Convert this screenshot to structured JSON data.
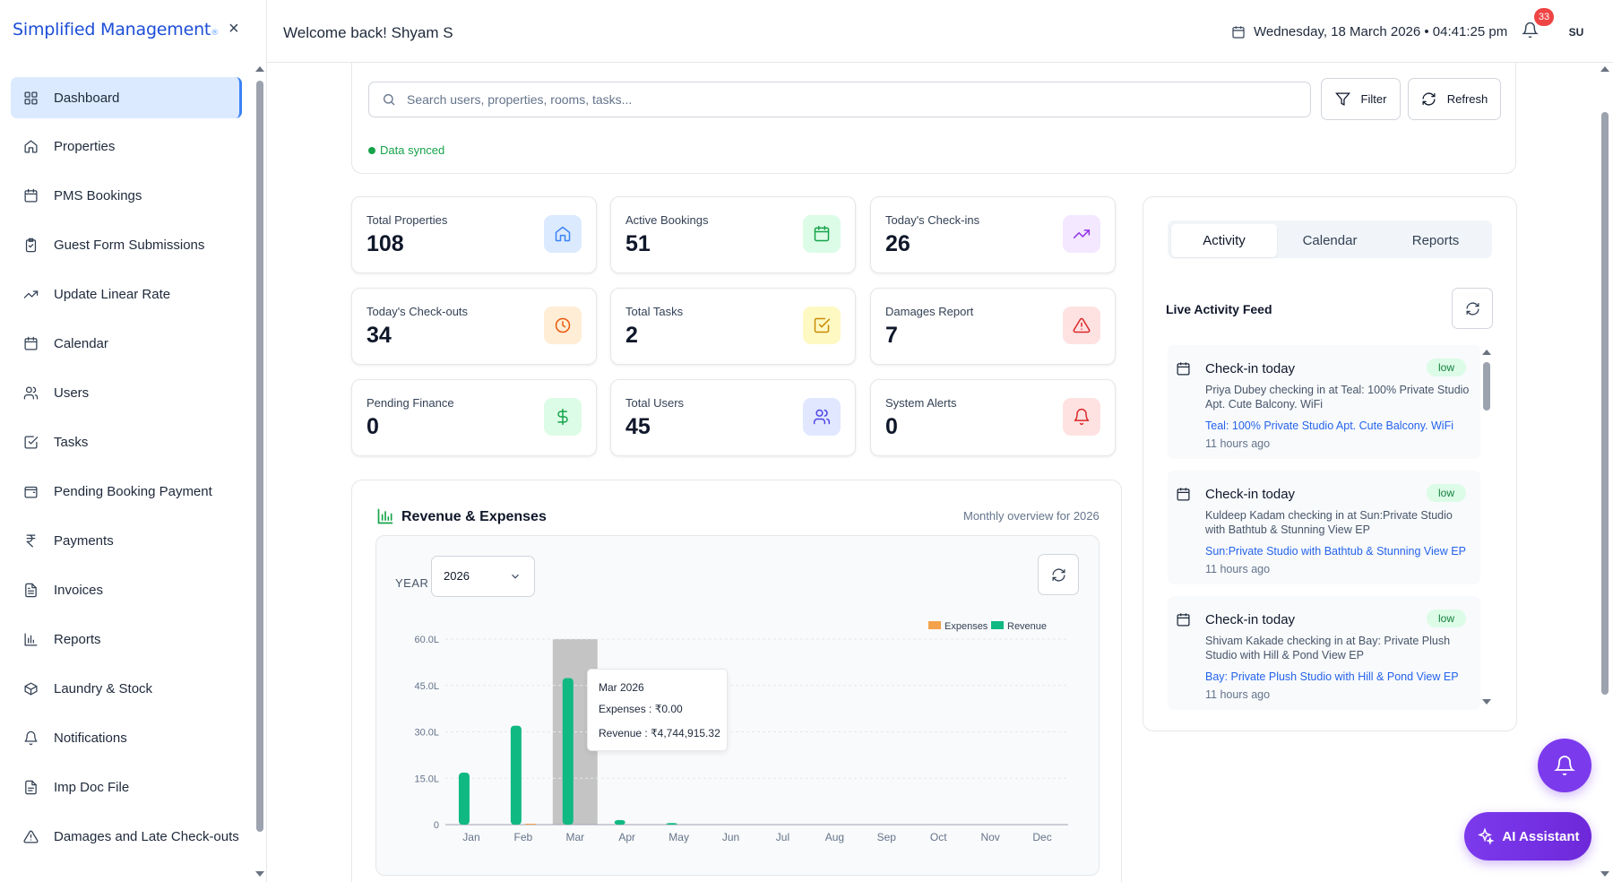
{
  "brand": {
    "name": "Simplified Management"
  },
  "sidebar": {
    "items": [
      {
        "label": "Dashboard",
        "icon": "grid-icon",
        "active": true
      },
      {
        "label": "Properties",
        "icon": "home-icon"
      },
      {
        "label": "PMS Bookings",
        "icon": "calendar-icon"
      },
      {
        "label": "Guest Form Submissions",
        "icon": "clipboard-icon"
      },
      {
        "label": "Update Linear Rate",
        "icon": "trending-up-icon"
      },
      {
        "label": "Calendar",
        "icon": "calendar-icon"
      },
      {
        "label": "Users",
        "icon": "users-icon"
      },
      {
        "label": "Tasks",
        "icon": "check-square-icon"
      },
      {
        "label": "Pending Booking Payment",
        "icon": "wallet-icon"
      },
      {
        "label": "Payments",
        "icon": "rupee-icon"
      },
      {
        "label": "Invoices",
        "icon": "file-text-icon"
      },
      {
        "label": "Reports",
        "icon": "bar-chart-icon"
      },
      {
        "label": "Laundry & Stock",
        "icon": "package-icon"
      },
      {
        "label": "Notifications",
        "icon": "bell-icon"
      },
      {
        "label": "Imp Doc File",
        "icon": "file-icon"
      },
      {
        "label": "Damages and Late Check-outs",
        "icon": "alert-triangle-icon"
      }
    ]
  },
  "header": {
    "welcome": "Welcome back! Shyam S",
    "datetime": "Wednesday, 18 March 2026 • 04:41:25 pm",
    "notification_count": "33",
    "avatar_initials": "SU"
  },
  "search": {
    "placeholder": "Search users, properties, rooms, tasks...",
    "filter_label": "Filter",
    "refresh_label": "Refresh",
    "status": "Data synced"
  },
  "stats": [
    {
      "label": "Total Properties",
      "value": "108",
      "icon": "home-icon",
      "color": "#3b82f6",
      "bg": "#dbeafe"
    },
    {
      "label": "Active Bookings",
      "value": "51",
      "icon": "calendar-icon",
      "color": "#16a34a",
      "bg": "#dcfce7"
    },
    {
      "label": "Today's Check-ins",
      "value": "26",
      "icon": "trending-up-icon",
      "color": "#9333ea",
      "bg": "#f3e8ff"
    },
    {
      "label": "Today's Check-outs",
      "value": "34",
      "icon": "clock-icon",
      "color": "#ea580c",
      "bg": "#ffedd5"
    },
    {
      "label": "Total Tasks",
      "value": "2",
      "icon": "check-square-icon",
      "color": "#ca8a04",
      "bg": "#fef9c3"
    },
    {
      "label": "Damages Report",
      "value": "7",
      "icon": "alert-triangle-icon",
      "color": "#dc2626",
      "bg": "#fee2e2"
    },
    {
      "label": "Pending Finance",
      "value": "0",
      "icon": "dollar-icon",
      "color": "#16a34a",
      "bg": "#dcfce7"
    },
    {
      "label": "Total Users",
      "value": "45",
      "icon": "users-icon",
      "color": "#4f46e5",
      "bg": "#e0e7ff"
    },
    {
      "label": "System Alerts",
      "value": "0",
      "icon": "bell-icon",
      "color": "#dc2626",
      "bg": "#fee2e2"
    }
  ],
  "revenue": {
    "title": "Revenue & Expenses",
    "subtitle": "Monthly overview for 2026",
    "year_label": "YEAR",
    "year_value": "2026",
    "tooltip": {
      "title": "Mar 2026",
      "expenses": "Expenses : ₹0.00",
      "revenue": "Revenue : ₹4,744,915.32"
    }
  },
  "chart_data": {
    "type": "bar",
    "categories": [
      "Jan",
      "Feb",
      "Mar",
      "Apr",
      "May",
      "Jun",
      "Jul",
      "Aug",
      "Sep",
      "Oct",
      "Nov",
      "Dec"
    ],
    "series": [
      {
        "name": "Expenses",
        "values": [
          0,
          0.3,
          0,
          0,
          0,
          0,
          0,
          0,
          0,
          0,
          0,
          0
        ],
        "color": "#f4a24c"
      },
      {
        "name": "Revenue",
        "values": [
          16.8,
          32.0,
          47.4,
          1.5,
          0.5,
          0,
          0,
          0,
          0,
          0,
          0,
          0
        ],
        "color": "#10b981"
      }
    ],
    "yticks": [
      "0",
      "15.0L",
      "30.0L",
      "45.0L",
      "60.0L"
    ],
    "ylim": [
      0,
      60
    ],
    "highlight_index": 2,
    "legend_position": "top-right",
    "grid": true
  },
  "activity": {
    "tabs": [
      "Activity",
      "Calendar",
      "Reports"
    ],
    "active_tab": "Activity",
    "feed_title": "Live Activity Feed",
    "items": [
      {
        "title": "Check-in today",
        "badge": "low",
        "desc": "Priya Dubey checking in at Teal: 100% Private Studio Apt. Cute Balcony. WiFi",
        "link": "Teal: 100% Private Studio Apt. Cute Balcony. WiFi",
        "time": "11 hours ago"
      },
      {
        "title": "Check-in today",
        "badge": "low",
        "desc": "Kuldeep Kadam checking in at Sun:Private Studio with Bathtub & Stunning View EP",
        "link": "Sun:Private Studio with Bathtub & Stunning View EP",
        "time": "11 hours ago"
      },
      {
        "title": "Check-in today",
        "badge": "low",
        "desc": "Shivam Kakade checking in at Bay: Private Plush Studio with Hill & Pond View EP",
        "link": "Bay: Private Plush Studio with Hill & Pond View EP",
        "time": "11 hours ago"
      }
    ]
  },
  "floating": {
    "ai_label": "AI Assistant"
  }
}
